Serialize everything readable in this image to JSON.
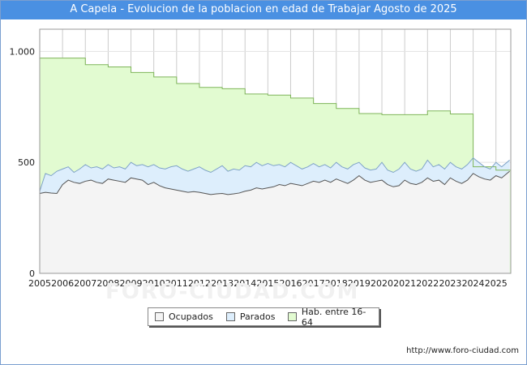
{
  "title": "A Capela - Evolucion de la poblacion en edad de Trabajar Agosto de 2025",
  "footer_url": "http://www.foro-ciudad.com",
  "watermark": "FORO-CIUDAD.COM",
  "colors": {
    "title_bg": "#4a90e2",
    "hab": "#e2fbd1",
    "hab_line": "#7fb55a",
    "parados": "#ddeefc",
    "parados_line": "#7fa3c8",
    "ocupados": "#f4f4f4",
    "ocupados_line": "#555555"
  },
  "chart_data": {
    "type": "area",
    "x_range": [
      2005,
      2025.65
    ],
    "ylim": [
      0,
      1100
    ],
    "yticks": [
      0,
      500,
      1000
    ],
    "ytick_labels": [
      "0",
      "500",
      "1.000"
    ],
    "xticks": [
      "2005",
      "2006",
      "2007",
      "2008",
      "2009",
      "2010",
      "2011",
      "2012",
      "2013",
      "2014",
      "2015",
      "2016",
      "2017",
      "2018",
      "2019",
      "2020",
      "2021",
      "2022",
      "2023",
      "2024",
      "2025"
    ],
    "grid": true,
    "legend_position": "bottom",
    "legend": [
      "Ocupados",
      "Parados",
      "Hab. entre 16-64"
    ],
    "series": [
      {
        "name": "Hab. entre 16-64",
        "kind": "step",
        "x": [
          2005,
          2006,
          2007,
          2008,
          2009,
          2010,
          2011,
          2012,
          2013,
          2014,
          2015,
          2016,
          2017,
          2018,
          2019,
          2020,
          2021,
          2022,
          2023,
          2024,
          2025
        ],
        "values": [
          970,
          970,
          940,
          930,
          905,
          885,
          855,
          838,
          832,
          808,
          803,
          790,
          765,
          743,
          720,
          715,
          715,
          732,
          718,
          480,
          465
        ]
      },
      {
        "name": "Parados",
        "kind": "band_top",
        "x": [
          2005,
          2005.25,
          2005.5,
          2005.75,
          2006,
          2006.25,
          2006.5,
          2006.75,
          2007,
          2007.25,
          2007.5,
          2007.75,
          2008,
          2008.25,
          2008.5,
          2008.75,
          2009,
          2009.25,
          2009.5,
          2009.75,
          2010,
          2010.25,
          2010.5,
          2010.75,
          2011,
          2011.25,
          2011.5,
          2011.75,
          2012,
          2012.25,
          2012.5,
          2012.75,
          2013,
          2013.25,
          2013.5,
          2013.75,
          2014,
          2014.25,
          2014.5,
          2014.75,
          2015,
          2015.25,
          2015.5,
          2015.75,
          2016,
          2016.25,
          2016.5,
          2016.75,
          2017,
          2017.25,
          2017.5,
          2017.75,
          2018,
          2018.25,
          2018.5,
          2018.75,
          2019,
          2019.25,
          2019.5,
          2019.75,
          2020,
          2020.25,
          2020.5,
          2020.75,
          2021,
          2021.25,
          2021.5,
          2021.75,
          2022,
          2022.25,
          2022.5,
          2022.75,
          2023,
          2023.25,
          2023.5,
          2023.75,
          2024,
          2024.25,
          2024.5,
          2024.75,
          2025,
          2025.25,
          2025.6
        ],
        "values": [
          370,
          450,
          440,
          460,
          470,
          480,
          455,
          470,
          490,
          475,
          480,
          470,
          490,
          475,
          480,
          470,
          500,
          485,
          490,
          480,
          490,
          475,
          470,
          480,
          485,
          470,
          460,
          470,
          480,
          465,
          455,
          470,
          485,
          460,
          470,
          465,
          485,
          480,
          500,
          485,
          495,
          485,
          490,
          480,
          500,
          485,
          470,
          480,
          495,
          480,
          490,
          475,
          500,
          480,
          470,
          490,
          500,
          475,
          465,
          470,
          500,
          465,
          455,
          470,
          500,
          470,
          460,
          470,
          510,
          480,
          490,
          470,
          500,
          480,
          470,
          490,
          520,
          500,
          480,
          470,
          500,
          480,
          510
        ]
      },
      {
        "name": "Ocupados",
        "kind": "band_bottom",
        "x": [
          2005,
          2005.25,
          2005.5,
          2005.75,
          2006,
          2006.25,
          2006.5,
          2006.75,
          2007,
          2007.25,
          2007.5,
          2007.75,
          2008,
          2008.25,
          2008.5,
          2008.75,
          2009,
          2009.25,
          2009.5,
          2009.75,
          2010,
          2010.25,
          2010.5,
          2010.75,
          2011,
          2011.25,
          2011.5,
          2011.75,
          2012,
          2012.25,
          2012.5,
          2012.75,
          2013,
          2013.25,
          2013.5,
          2013.75,
          2014,
          2014.25,
          2014.5,
          2014.75,
          2015,
          2015.25,
          2015.5,
          2015.75,
          2016,
          2016.25,
          2016.5,
          2016.75,
          2017,
          2017.25,
          2017.5,
          2017.75,
          2018,
          2018.25,
          2018.5,
          2018.75,
          2019,
          2019.25,
          2019.5,
          2019.75,
          2020,
          2020.25,
          2020.5,
          2020.75,
          2021,
          2021.25,
          2021.5,
          2021.75,
          2022,
          2022.25,
          2022.5,
          2022.75,
          2023,
          2023.25,
          2023.5,
          2023.75,
          2024,
          2024.25,
          2024.5,
          2024.75,
          2025,
          2025.25,
          2025.6
        ],
        "values": [
          360,
          365,
          362,
          360,
          400,
          420,
          410,
          405,
          415,
          420,
          410,
          405,
          425,
          420,
          415,
          410,
          430,
          425,
          420,
          400,
          410,
          395,
          385,
          380,
          375,
          370,
          365,
          368,
          365,
          360,
          355,
          358,
          360,
          355,
          358,
          362,
          370,
          375,
          385,
          380,
          385,
          390,
          400,
          395,
          405,
          400,
          395,
          405,
          415,
          410,
          420,
          410,
          425,
          415,
          405,
          420,
          440,
          420,
          410,
          415,
          420,
          400,
          390,
          395,
          420,
          405,
          400,
          410,
          430,
          415,
          420,
          400,
          430,
          415,
          405,
          420,
          450,
          435,
          425,
          420,
          440,
          430,
          460
        ]
      }
    ]
  }
}
